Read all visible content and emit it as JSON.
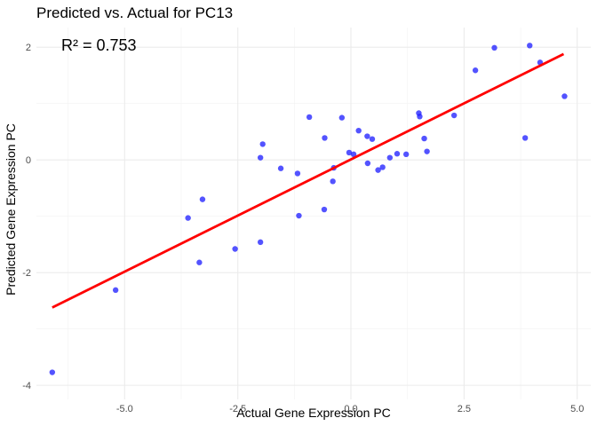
{
  "chart_data": {
    "type": "scatter",
    "title": "Predicted vs. Actual for PC13",
    "xlabel": "Actual Gene Expression PC",
    "ylabel": "Predicted Gene Expression PC",
    "xlim": [
      -6.95,
      5.3
    ],
    "ylim": [
      -4.25,
      2.35
    ],
    "x_ticks": [
      -5.0,
      -2.5,
      0.0,
      2.5,
      5.0
    ],
    "x_tick_labels": [
      "-5.0",
      "-2.5",
      "0.0",
      "2.5",
      "5.0"
    ],
    "y_ticks": [
      -4,
      -2,
      0,
      2
    ],
    "y_tick_labels": [
      "-4",
      "-2",
      "0",
      "2"
    ],
    "grid": true,
    "point_color": "#1a1aff",
    "line_color": "#ff0000",
    "annotation": "R² = 0.753",
    "fit_line": {
      "x": [
        -6.6,
        4.7
      ],
      "y": [
        -2.62,
        1.88
      ]
    },
    "points": [
      {
        "x": -6.6,
        "y": -3.77
      },
      {
        "x": -5.2,
        "y": -2.31
      },
      {
        "x": -3.6,
        "y": -1.03
      },
      {
        "x": -3.35,
        "y": -1.82
      },
      {
        "x": -3.28,
        "y": -0.7
      },
      {
        "x": -2.56,
        "y": -1.58
      },
      {
        "x": -2.0,
        "y": -1.46
      },
      {
        "x": -2.0,
        "y": 0.04
      },
      {
        "x": -1.95,
        "y": 0.28
      },
      {
        "x": -1.55,
        "y": -0.15
      },
      {
        "x": -1.18,
        "y": -0.24
      },
      {
        "x": -1.15,
        "y": -0.99
      },
      {
        "x": -0.92,
        "y": 0.76
      },
      {
        "x": -0.59,
        "y": -0.88
      },
      {
        "x": -0.58,
        "y": 0.39
      },
      {
        "x": -0.4,
        "y": -0.38
      },
      {
        "x": -0.38,
        "y": -0.14
      },
      {
        "x": -0.2,
        "y": 0.75
      },
      {
        "x": -0.04,
        "y": 0.13
      },
      {
        "x": 0.06,
        "y": 0.1
      },
      {
        "x": 0.17,
        "y": 0.52
      },
      {
        "x": 0.36,
        "y": 0.42
      },
      {
        "x": 0.37,
        "y": -0.06
      },
      {
        "x": 0.47,
        "y": 0.37
      },
      {
        "x": 0.6,
        "y": -0.18
      },
      {
        "x": 0.7,
        "y": -0.13
      },
      {
        "x": 0.86,
        "y": 0.04
      },
      {
        "x": 1.02,
        "y": 0.11
      },
      {
        "x": 1.22,
        "y": 0.1
      },
      {
        "x": 1.5,
        "y": 0.83
      },
      {
        "x": 1.52,
        "y": 0.77
      },
      {
        "x": 1.62,
        "y": 0.38
      },
      {
        "x": 1.68,
        "y": 0.15
      },
      {
        "x": 2.28,
        "y": 0.79
      },
      {
        "x": 2.75,
        "y": 1.59
      },
      {
        "x": 3.17,
        "y": 1.99
      },
      {
        "x": 3.85,
        "y": 0.39
      },
      {
        "x": 3.95,
        "y": 2.03
      },
      {
        "x": 4.18,
        "y": 1.73
      },
      {
        "x": 4.72,
        "y": 1.13
      }
    ]
  }
}
